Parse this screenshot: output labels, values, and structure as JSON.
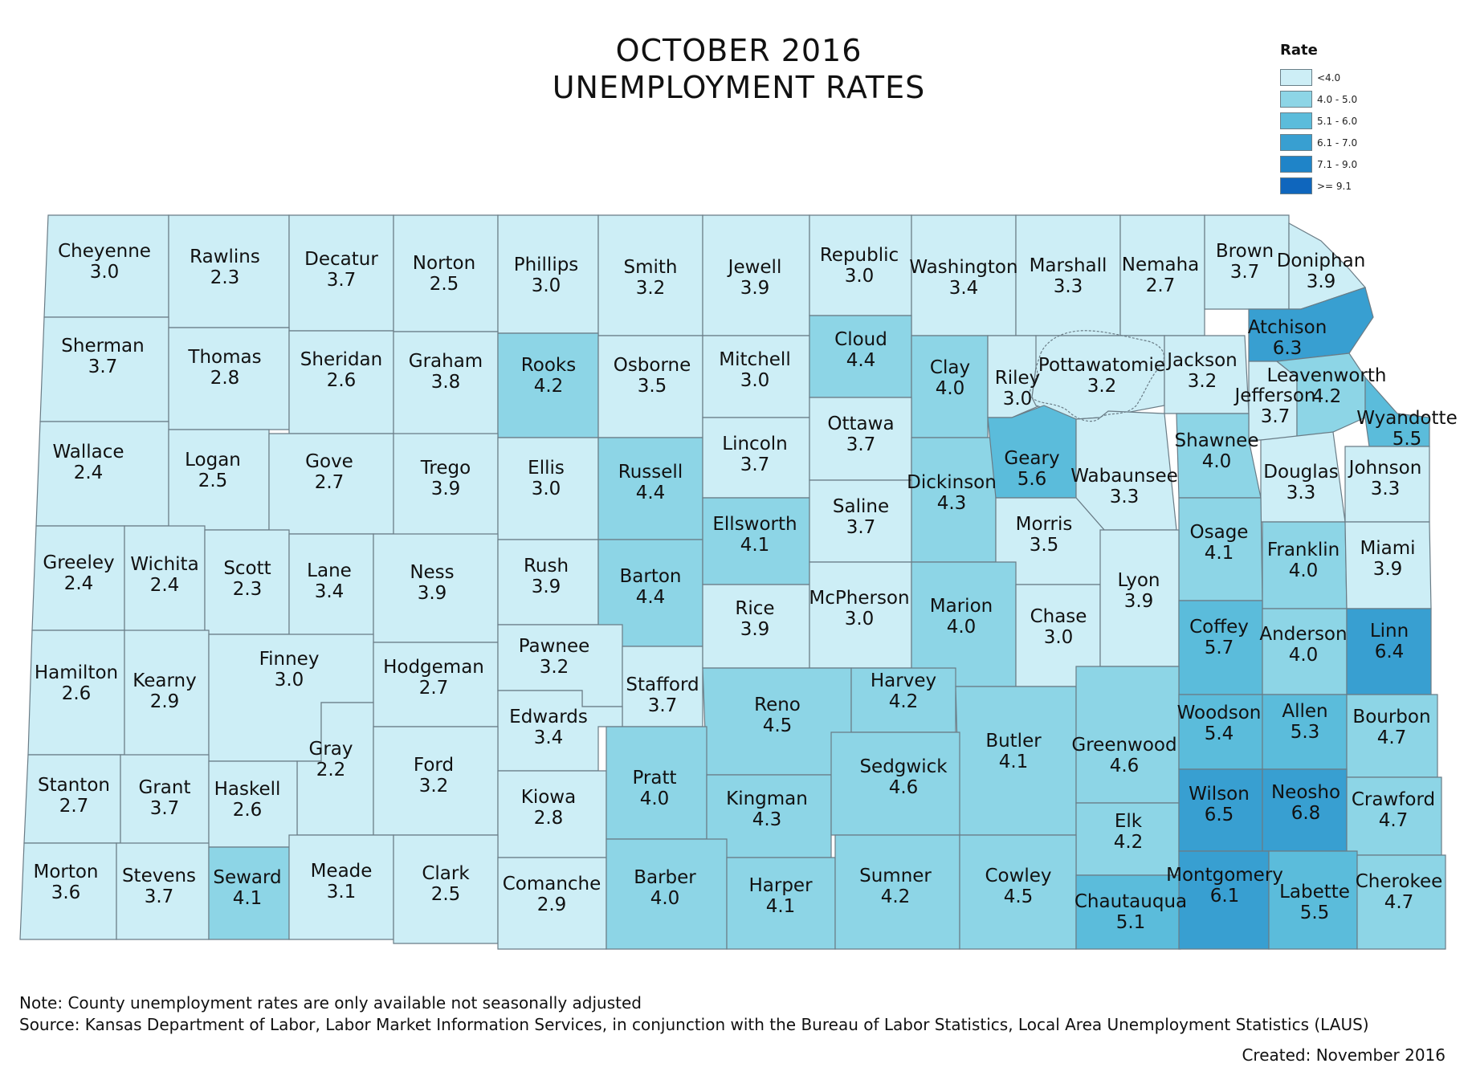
{
  "title": {
    "line1": "OCTOBER 2016",
    "line2": "UNEMPLOYMENT RATES"
  },
  "legend": {
    "title": "Rate",
    "classes": [
      {
        "label": "<4.0",
        "color": "#cdeef6"
      },
      {
        "label": "4.0 - 5.0",
        "color": "#8dd5e6"
      },
      {
        "label": "5.1 - 6.0",
        "color": "#5bbcdb"
      },
      {
        "label": "6.1 - 7.0",
        "color": "#389fd1"
      },
      {
        "label": "7.1 - 9.0",
        "color": "#1f84c8"
      },
      {
        "label": ">= 9.1",
        "color": "#0f66bd"
      }
    ]
  },
  "counties": [
    {
      "name": "Cheyenne",
      "rate": "3.0"
    },
    {
      "name": "Rawlins",
      "rate": "2.3"
    },
    {
      "name": "Decatur",
      "rate": "3.7"
    },
    {
      "name": "Norton",
      "rate": "2.5"
    },
    {
      "name": "Phillips",
      "rate": "3.0"
    },
    {
      "name": "Smith",
      "rate": "3.2"
    },
    {
      "name": "Jewell",
      "rate": "3.9"
    },
    {
      "name": "Republic",
      "rate": "3.0"
    },
    {
      "name": "Washington",
      "rate": "3.4"
    },
    {
      "name": "Marshall",
      "rate": "3.3"
    },
    {
      "name": "Nemaha",
      "rate": "2.7"
    },
    {
      "name": "Brown",
      "rate": "3.7"
    },
    {
      "name": "Doniphan",
      "rate": "3.9"
    },
    {
      "name": "Sherman",
      "rate": "3.7"
    },
    {
      "name": "Thomas",
      "rate": "2.8"
    },
    {
      "name": "Sheridan",
      "rate": "2.6"
    },
    {
      "name": "Graham",
      "rate": "3.8"
    },
    {
      "name": "Rooks",
      "rate": "4.2"
    },
    {
      "name": "Osborne",
      "rate": "3.5"
    },
    {
      "name": "Mitchell",
      "rate": "3.0"
    },
    {
      "name": "Cloud",
      "rate": "4.4"
    },
    {
      "name": "Clay",
      "rate": "4.0"
    },
    {
      "name": "Riley",
      "rate": "3.0"
    },
    {
      "name": "Pottawatomie",
      "rate": "3.2"
    },
    {
      "name": "Jackson",
      "rate": "3.2"
    },
    {
      "name": "Atchison",
      "rate": "6.3"
    },
    {
      "name": "Jefferson",
      "rate": "3.7"
    },
    {
      "name": "Leavenworth",
      "rate": "4.2"
    },
    {
      "name": "Wyandotte",
      "rate": "5.5"
    },
    {
      "name": "Wallace",
      "rate": "2.4"
    },
    {
      "name": "Logan",
      "rate": "2.5"
    },
    {
      "name": "Gove",
      "rate": "2.7"
    },
    {
      "name": "Trego",
      "rate": "3.9"
    },
    {
      "name": "Ellis",
      "rate": "3.0"
    },
    {
      "name": "Russell",
      "rate": "4.4"
    },
    {
      "name": "Lincoln",
      "rate": "3.7"
    },
    {
      "name": "Ottawa",
      "rate": "3.7"
    },
    {
      "name": "Dickinson",
      "rate": "4.3"
    },
    {
      "name": "Geary",
      "rate": "5.6"
    },
    {
      "name": "Wabaunsee",
      "rate": "3.3"
    },
    {
      "name": "Shawnee",
      "rate": "4.0"
    },
    {
      "name": "Douglas",
      "rate": "3.3"
    },
    {
      "name": "Johnson",
      "rate": "3.3"
    },
    {
      "name": "Greeley",
      "rate": "2.4"
    },
    {
      "name": "Wichita",
      "rate": "2.4"
    },
    {
      "name": "Scott",
      "rate": "2.3"
    },
    {
      "name": "Lane",
      "rate": "3.4"
    },
    {
      "name": "Ness",
      "rate": "3.9"
    },
    {
      "name": "Rush",
      "rate": "3.9"
    },
    {
      "name": "Barton",
      "rate": "4.4"
    },
    {
      "name": "Ellsworth",
      "rate": "4.1"
    },
    {
      "name": "Saline",
      "rate": "3.7"
    },
    {
      "name": "Morris",
      "rate": "3.5"
    },
    {
      "name": "Osage",
      "rate": "4.1"
    },
    {
      "name": "Franklin",
      "rate": "4.0"
    },
    {
      "name": "Miami",
      "rate": "3.9"
    },
    {
      "name": "Hamilton",
      "rate": "2.6"
    },
    {
      "name": "Kearny",
      "rate": "2.9"
    },
    {
      "name": "Finney",
      "rate": "3.0"
    },
    {
      "name": "Hodgeman",
      "rate": "2.7"
    },
    {
      "name": "Pawnee",
      "rate": "3.2"
    },
    {
      "name": "Stafford",
      "rate": "3.7"
    },
    {
      "name": "Rice",
      "rate": "3.9"
    },
    {
      "name": "McPherson",
      "rate": "3.0"
    },
    {
      "name": "Marion",
      "rate": "4.0"
    },
    {
      "name": "Chase",
      "rate": "3.0"
    },
    {
      "name": "Lyon",
      "rate": "3.9"
    },
    {
      "name": "Coffey",
      "rate": "5.7"
    },
    {
      "name": "Anderson",
      "rate": "4.0"
    },
    {
      "name": "Linn",
      "rate": "6.4"
    },
    {
      "name": "Gray",
      "rate": "2.2"
    },
    {
      "name": "Edwards",
      "rate": "3.4"
    },
    {
      "name": "Reno",
      "rate": "4.5"
    },
    {
      "name": "Harvey",
      "rate": "4.2"
    },
    {
      "name": "Butler",
      "rate": "4.1"
    },
    {
      "name": "Greenwood",
      "rate": "4.6"
    },
    {
      "name": "Woodson",
      "rate": "5.4"
    },
    {
      "name": "Allen",
      "rate": "5.3"
    },
    {
      "name": "Bourbon",
      "rate": "4.7"
    },
    {
      "name": "Stanton",
      "rate": "2.7"
    },
    {
      "name": "Grant",
      "rate": "3.7"
    },
    {
      "name": "Haskell",
      "rate": "2.6"
    },
    {
      "name": "Ford",
      "rate": "3.2"
    },
    {
      "name": "Kiowa",
      "rate": "2.8"
    },
    {
      "name": "Pratt",
      "rate": "4.0"
    },
    {
      "name": "Kingman",
      "rate": "4.3"
    },
    {
      "name": "Sedgwick",
      "rate": "4.6"
    },
    {
      "name": "Elk",
      "rate": "4.2"
    },
    {
      "name": "Wilson",
      "rate": "6.5"
    },
    {
      "name": "Neosho",
      "rate": "6.8"
    },
    {
      "name": "Crawford",
      "rate": "4.7"
    },
    {
      "name": "Morton",
      "rate": "3.6"
    },
    {
      "name": "Stevens",
      "rate": "3.7"
    },
    {
      "name": "Seward",
      "rate": "4.1"
    },
    {
      "name": "Meade",
      "rate": "3.1"
    },
    {
      "name": "Clark",
      "rate": "2.5"
    },
    {
      "name": "Comanche",
      "rate": "2.9"
    },
    {
      "name": "Barber",
      "rate": "4.0"
    },
    {
      "name": "Harper",
      "rate": "4.1"
    },
    {
      "name": "Sumner",
      "rate": "4.2"
    },
    {
      "name": "Cowley",
      "rate": "4.5"
    },
    {
      "name": "Chautauqua",
      "rate": "5.1"
    },
    {
      "name": "Montgomery",
      "rate": "6.1"
    },
    {
      "name": "Labette",
      "rate": "5.5"
    },
    {
      "name": "Cherokee",
      "rate": "4.7"
    }
  ],
  "footer": {
    "note": "Note: County unemployment rates are only available not seasonally adjusted",
    "source": "Source: Kansas Department of Labor, Labor Market Information Services, in conjunction with the Bureau of Labor Statistics, Local Area Unemployment Statistics (LAUS)",
    "created": "Created:  November 2016"
  }
}
